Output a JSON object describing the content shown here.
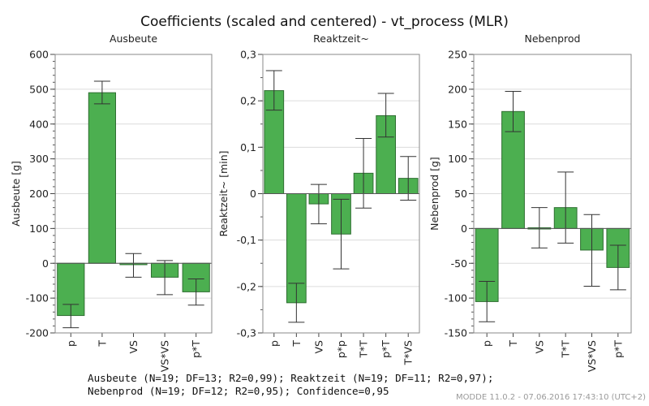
{
  "chart_data": {
    "type": "bar",
    "title": "Coefficients (scaled and centered) - vt_process (MLR)",
    "panels": [
      {
        "name": "Ausbeute",
        "subtitle": "Ausbeute",
        "ylabel": "Ausbeute [g]",
        "ylim": [
          -200,
          600
        ],
        "major_ticks": [
          600,
          500,
          400,
          300,
          200,
          100,
          0,
          -100,
          -200
        ],
        "tick_labels": [
          "600",
          "500",
          "400",
          "300",
          "200",
          "100",
          "0",
          "-100",
          "-200"
        ],
        "minor_step": 20,
        "grid": true,
        "categories": [
          "p",
          "T",
          "VS",
          "VS*VS",
          "p*T"
        ],
        "values": [
          -150,
          490,
          -4,
          -40,
          -82
        ],
        "ci_low": [
          -185,
          458,
          -40,
          -90,
          -120
        ],
        "ci_high": [
          -118,
          523,
          28,
          8,
          -45
        ]
      },
      {
        "name": "Reaktzeit",
        "subtitle": "Reaktzeit~",
        "ylabel": "Reaktzeit~ [min]",
        "ylim": [
          -0.3,
          0.3
        ],
        "major_ticks": [
          0.3,
          0.2,
          0.1,
          0,
          -0.1,
          -0.2,
          -0.3
        ],
        "tick_labels": [
          "0,3",
          "0,2",
          "0,1",
          "0",
          "-0,1",
          "-0,2",
          "-0,3"
        ],
        "minor_step": 0.05,
        "grid": true,
        "categories": [
          "p",
          "T",
          "VS",
          "p*p",
          "T*T",
          "p*T",
          "T*VS"
        ],
        "values": [
          0.222,
          -0.235,
          -0.022,
          -0.087,
          0.044,
          0.168,
          0.033
        ],
        "ci_low": [
          0.18,
          -0.277,
          -0.065,
          -0.162,
          -0.031,
          0.122,
          -0.014
        ],
        "ci_high": [
          0.265,
          -0.193,
          0.02,
          -0.012,
          0.119,
          0.216,
          0.08
        ]
      },
      {
        "name": "Nebenprod",
        "subtitle": "Nebenprod",
        "ylabel": "Nebenprod [g]",
        "ylim": [
          -150,
          250
        ],
        "major_ticks": [
          250,
          200,
          150,
          100,
          50,
          0,
          -50,
          -100,
          -150
        ],
        "tick_labels": [
          "250",
          "200",
          "150",
          "100",
          "50",
          "0",
          "-50",
          "-100",
          "-150"
        ],
        "minor_step": 10,
        "grid": true,
        "categories": [
          "p",
          "T",
          "VS",
          "T*T",
          "VS*VS",
          "p*T"
        ],
        "values": [
          -105,
          168,
          1,
          30,
          -31,
          -56
        ],
        "ci_low": [
          -134,
          139,
          -28,
          -21,
          -83,
          -88
        ],
        "ci_high": [
          -76,
          197,
          30,
          81,
          20,
          -24
        ]
      }
    ],
    "colors": {
      "bar_fill": "#4caf50",
      "bar_stroke": "#2e6e31",
      "errorbar": "#333333",
      "grid": "#dcdcdc",
      "frame": "#8a8a8a"
    }
  },
  "footer": {
    "line1": "Ausbeute (N=19; DF=13; R2=0,99); Reaktzeit (N=19; DF=11; R2=0,97);",
    "line2": "Nebenprod (N=19; DF=12; R2=0,95); Confidence=0,95"
  },
  "stamp": "MODDE 11.0.2 - 07.06.2016 17:43:10 (UTC+2)"
}
